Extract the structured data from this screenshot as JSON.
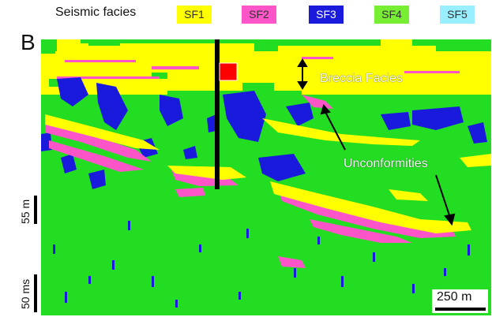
{
  "legend": {
    "title": "Seismic facies",
    "items": [
      {
        "label": "SF1",
        "color": "#ffff00",
        "text_color": "#333333"
      },
      {
        "label": "SF2",
        "color": "#ff55c8",
        "text_color": "#333333"
      },
      {
        "label": "SF3",
        "color": "#1a1adc",
        "text_color": "#ffffff"
      },
      {
        "label": "SF4",
        "color": "#77ee33",
        "text_color": "#333333"
      },
      {
        "label": "SF5",
        "color": "#99eeff",
        "text_color": "#333333"
      }
    ]
  },
  "panel": {
    "letter": "B"
  },
  "annotations": {
    "breccia": "Breccia Facies",
    "unconformities": "Unconformities"
  },
  "scale": {
    "vertical_depth": "55 m",
    "vertical_time": "50 ms",
    "horizontal": "250 m"
  },
  "colors": {
    "background": "#22dd22",
    "sf1": "#ffff00",
    "sf2": "#ff55c8",
    "sf3": "#1a1adc",
    "well": "#000000",
    "marker": "#ff0000"
  }
}
